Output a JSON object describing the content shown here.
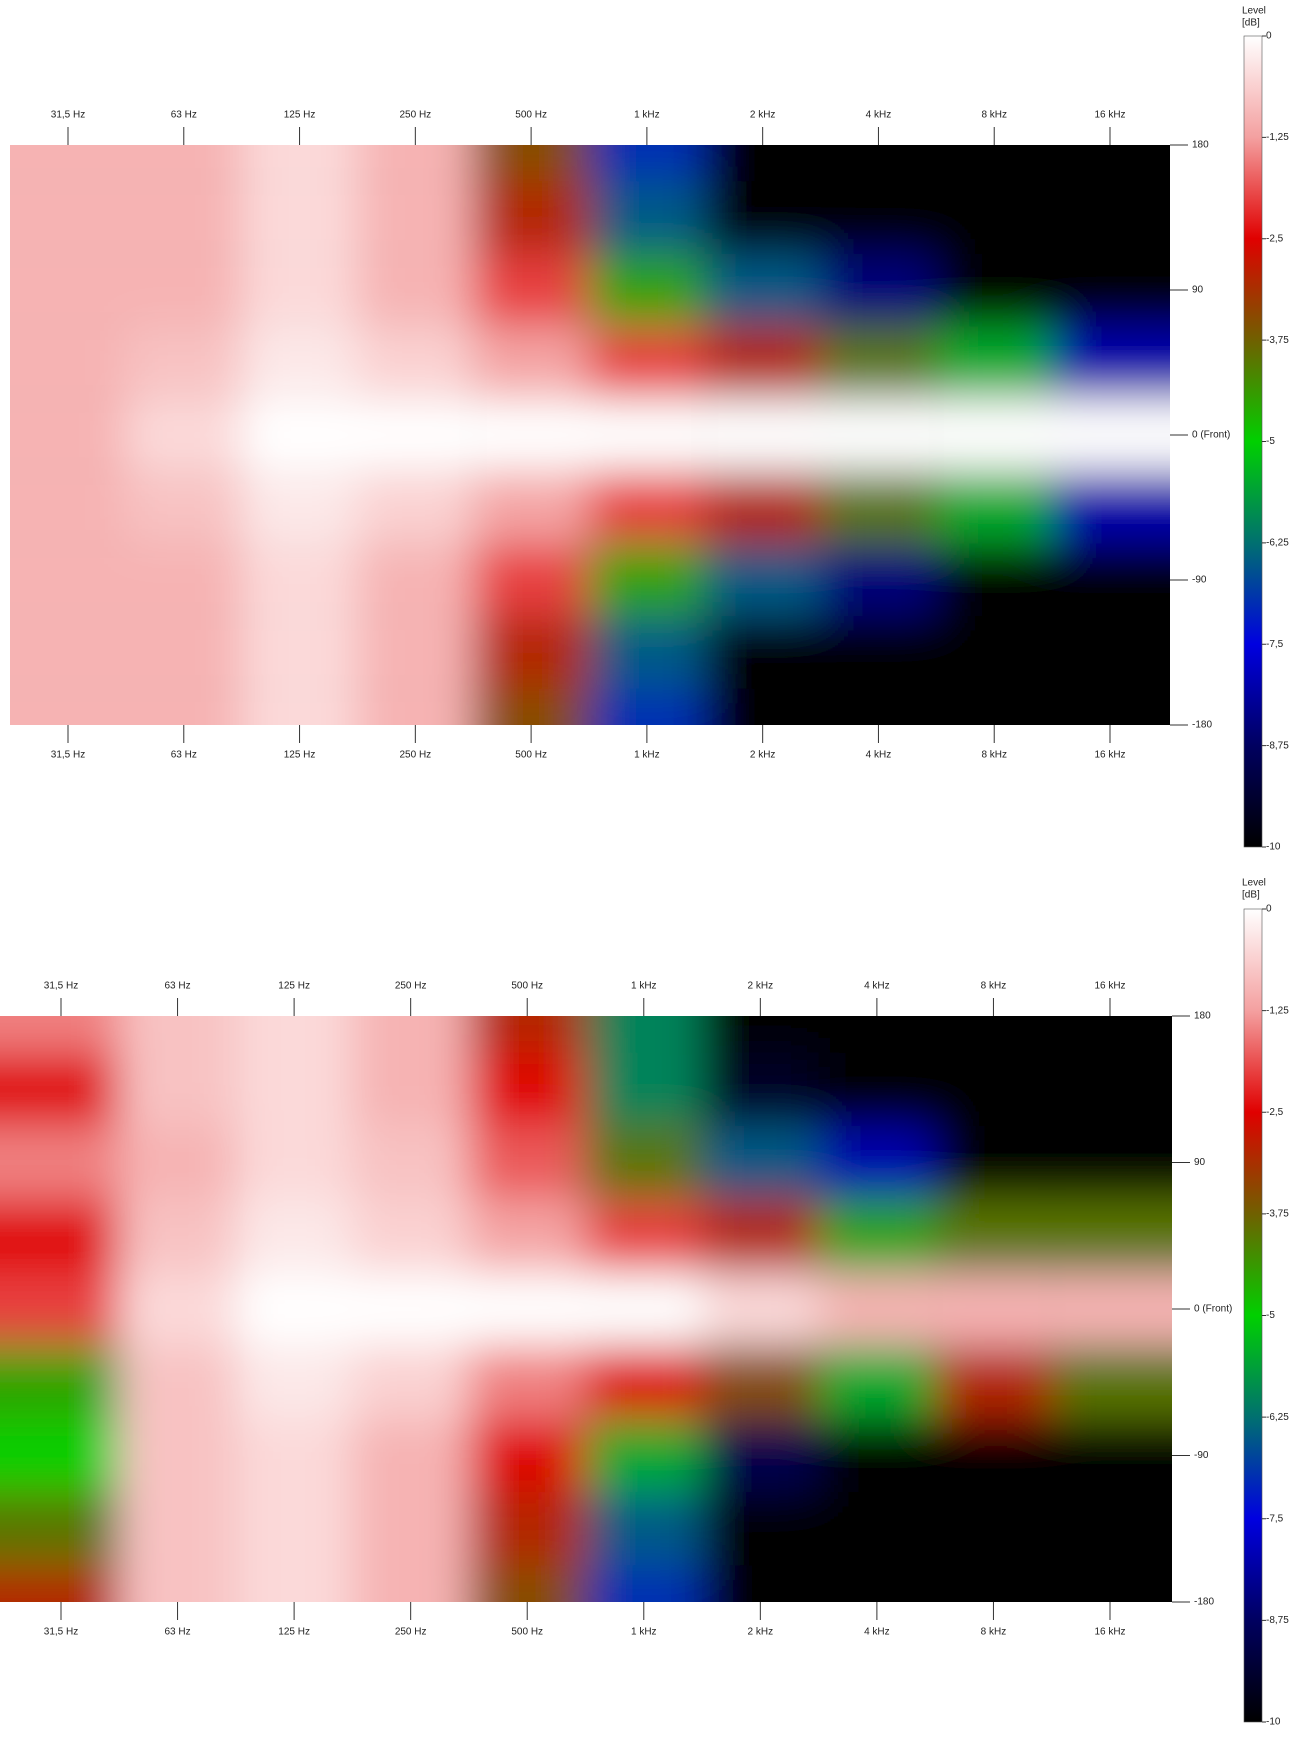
{
  "chart_data": [
    {
      "type": "heatmap",
      "x_categories": [
        "31,5 Hz",
        "63 Hz",
        "125 Hz",
        "250 Hz",
        "500 Hz",
        "1 kHz",
        "2 kHz",
        "4 kHz",
        "8 kHz",
        "16 kHz"
      ],
      "y": [
        180,
        135,
        90,
        45,
        0,
        -45,
        -90,
        -135,
        -180
      ],
      "ylim": [
        -180,
        180
      ],
      "yticks": [
        180,
        90,
        {
          "value": 0,
          "label": "0 (Front)"
        },
        -90,
        -180
      ],
      "values": [
        [
          -1,
          -1,
          -0.5,
          -1,
          -3.5,
          -7,
          -10,
          -10,
          -10,
          -10
        ],
        [
          -1,
          -1,
          -0.5,
          -1,
          -3,
          -6.5,
          -10,
          -10,
          -10,
          -10
        ],
        [
          -1,
          -1,
          -0.5,
          -1,
          -2,
          -4.5,
          -6.5,
          -8.5,
          -10,
          -10
        ],
        [
          -1,
          -0.8,
          -0.3,
          -0.6,
          -1.2,
          -2,
          -3,
          -4,
          -5.5,
          -8
        ],
        [
          -1,
          -0.5,
          0,
          0,
          0,
          0,
          0,
          0,
          0,
          0
        ],
        [
          -1,
          -0.8,
          -0.3,
          -0.6,
          -1.2,
          -2,
          -3,
          -4,
          -5.5,
          -8
        ],
        [
          -1,
          -1,
          -0.5,
          -1,
          -2,
          -4.5,
          -6.5,
          -8.5,
          -10,
          -10
        ],
        [
          -1,
          -1,
          -0.5,
          -1,
          -3,
          -6.5,
          -10,
          -10,
          -10,
          -10
        ],
        [
          -1,
          -1,
          -0.5,
          -1,
          -3.5,
          -7,
          -10,
          -10,
          -10,
          -10
        ]
      ],
      "colorbar": {
        "title": [
          "Level",
          "[dB]"
        ],
        "lim": [
          -10,
          0
        ],
        "ticks": [
          0,
          {
            "value": -1.25,
            "label": "-1,25"
          },
          {
            "value": -2.5,
            "label": "-2,5"
          },
          {
            "value": -3.75,
            "label": "-3,75"
          },
          -5,
          {
            "value": -6.25,
            "label": "-6,25"
          },
          {
            "value": -7.5,
            "label": "-7,5"
          },
          {
            "value": -8.75,
            "label": "-8,75"
          },
          -10
        ]
      },
      "colormap": [
        {
          "value": 0,
          "color": "#ffffff"
        },
        {
          "value": -1.25,
          "color": "#f4a0a0"
        },
        {
          "value": -2.5,
          "color": "#e00000"
        },
        {
          "value": -3.75,
          "color": "#706000"
        },
        {
          "value": -5,
          "color": "#00d000"
        },
        {
          "value": -6.25,
          "color": "#007070"
        },
        {
          "value": -7.5,
          "color": "#0000e0"
        },
        {
          "value": -8.75,
          "color": "#000060"
        },
        {
          "value": -10,
          "color": "#000000"
        }
      ]
    },
    {
      "type": "heatmap",
      "x_categories": [
        "31,5 Hz",
        "63 Hz",
        "125 Hz",
        "250 Hz",
        "500 Hz",
        "1 kHz",
        "2 kHz",
        "4 kHz",
        "8 kHz",
        "16 kHz"
      ],
      "y": [
        180,
        135,
        90,
        45,
        0,
        -45,
        -90,
        -135,
        -180
      ],
      "ylim": [
        -180,
        180
      ],
      "yticks": [
        180,
        90,
        {
          "value": 0,
          "label": "0 (Front)"
        },
        -90,
        -180
      ],
      "values": [
        [
          -1.5,
          -0.8,
          -0.5,
          -1,
          -3,
          -6,
          -10,
          -10,
          -10,
          -10
        ],
        [
          -2.5,
          -0.8,
          -0.5,
          -1,
          -2.5,
          -6,
          -9.5,
          -10,
          -10,
          -10
        ],
        [
          -1.5,
          -1,
          -0.5,
          -0.8,
          -1.8,
          -4,
          -6.5,
          -8,
          -10,
          -10
        ],
        [
          -2.5,
          -0.8,
          -0.3,
          -0.6,
          -1.2,
          -2,
          -3,
          -4.5,
          -4,
          -4
        ],
        [
          -2,
          -0.5,
          0,
          0,
          0,
          0,
          -0.5,
          -1,
          -1,
          -1
        ],
        [
          -4.5,
          -0.8,
          -0.3,
          -0.6,
          -1.5,
          -2.5,
          -3.5,
          -5.5,
          -3,
          -4
        ],
        [
          -5,
          -0.8,
          -0.5,
          -1,
          -2.5,
          -5.5,
          -9,
          -10,
          -10,
          -10
        ],
        [
          -4,
          -0.8,
          -0.5,
          -1,
          -3,
          -6.5,
          -10,
          -10,
          -10,
          -10
        ],
        [
          -3,
          -0.8,
          -0.5,
          -1,
          -3.5,
          -7,
          -10,
          -10,
          -10,
          -10
        ]
      ],
      "colorbar": {
        "title": [
          "Level",
          "[dB]"
        ],
        "lim": [
          -10,
          0
        ],
        "ticks": [
          0,
          {
            "value": -1.25,
            "label": "-1,25"
          },
          {
            "value": -2.5,
            "label": "-2,5"
          },
          {
            "value": -3.75,
            "label": "-3,75"
          },
          -5,
          {
            "value": -6.25,
            "label": "-6,25"
          },
          {
            "value": -7.5,
            "label": "-7,5"
          },
          {
            "value": -8.75,
            "label": "-8,75"
          },
          -10
        ]
      },
      "colormap": [
        {
          "value": 0,
          "color": "#ffffff"
        },
        {
          "value": -1.25,
          "color": "#f4a0a0"
        },
        {
          "value": -2.5,
          "color": "#e00000"
        },
        {
          "value": -3.75,
          "color": "#706000"
        },
        {
          "value": -5,
          "color": "#00d000"
        },
        {
          "value": -6.25,
          "color": "#007070"
        },
        {
          "value": -7.5,
          "color": "#0000e0"
        },
        {
          "value": -8.75,
          "color": "#000060"
        },
        {
          "value": -10,
          "color": "#000000"
        }
      ]
    }
  ]
}
